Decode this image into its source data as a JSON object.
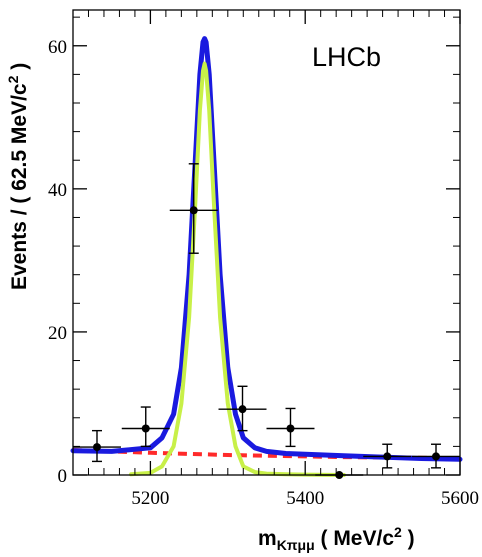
{
  "chart_data": {
    "type": "line",
    "title": "",
    "experiment_label": "LHCb",
    "xlabel_main": "m",
    "xlabel_sub": "Kπμμ",
    "xlabel_unit_pre": " ( MeV/c",
    "xlabel_unit_sup": "2",
    "xlabel_unit_post": " )",
    "ylabel_pre": "Events / ( 62.5 MeV/c",
    "ylabel_sup": "2",
    "ylabel_post": " )",
    "xlim": [
      5100,
      5600
    ],
    "ylim": [
      0,
      65
    ],
    "x_ticks": [
      5200,
      5400,
      5600
    ],
    "x_tick_labels": [
      "5200",
      "5400",
      "5600"
    ],
    "y_ticks": [
      0,
      20,
      40,
      60
    ],
    "y_tick_labels": [
      "0",
      "20",
      "40",
      "60"
    ],
    "grid": false,
    "data_points": [
      {
        "x": 5131,
        "y": 3.9,
        "xerr": 31,
        "yerr_low": 2.0,
        "yerr_high": 2.3
      },
      {
        "x": 5194,
        "y": 6.5,
        "xerr": 31,
        "yerr_low": 2.5,
        "yerr_high": 3.0
      },
      {
        "x": 5256,
        "y": 37.0,
        "xerr": 31,
        "yerr_low": 6.0,
        "yerr_high": 6.5
      },
      {
        "x": 5319,
        "y": 9.2,
        "xerr": 31,
        "yerr_low": 3.0,
        "yerr_high": 3.2
      },
      {
        "x": 5381,
        "y": 6.5,
        "xerr": 31,
        "yerr_low": 2.5,
        "yerr_high": 2.8
      },
      {
        "x": 5444,
        "y": 0.0,
        "xerr": 31,
        "yerr_low": 0.0,
        "yerr_high": 0.0
      },
      {
        "x": 5506,
        "y": 2.6,
        "xerr": 31,
        "yerr_low": 1.6,
        "yerr_high": 1.7
      },
      {
        "x": 5569,
        "y": 2.6,
        "xerr": 31,
        "yerr_low": 1.6,
        "yerr_high": 1.7
      }
    ],
    "series": [
      {
        "role": "total_fit",
        "color": "#1a1adf",
        "style": "solid",
        "x": [
          5100,
          5150,
          5200,
          5215,
          5230,
          5240,
          5250,
          5258,
          5264,
          5268,
          5270,
          5272,
          5276,
          5282,
          5290,
          5300,
          5310,
          5320,
          5335,
          5350,
          5375,
          5400,
          5450,
          5500,
          5550,
          5600
        ],
        "y": [
          3.4,
          3.3,
          3.8,
          5.2,
          8.5,
          15,
          28,
          44,
          56,
          60.5,
          61,
          60.5,
          56,
          44,
          28,
          15,
          8.5,
          5.2,
          3.8,
          3.3,
          3.0,
          2.9,
          2.7,
          2.5,
          2.3,
          2.2
        ]
      },
      {
        "role": "signal",
        "color": "#c8f048",
        "style": "solid",
        "x": [
          5175,
          5200,
          5215,
          5230,
          5240,
          5250,
          5258,
          5264,
          5268,
          5270,
          5272,
          5276,
          5282,
          5290,
          5300,
          5310,
          5320,
          5335,
          5350,
          5375,
          5400,
          5450
        ],
        "y": [
          0.1,
          0.3,
          1.2,
          4,
          10,
          22,
          38,
          51,
          56.5,
          57.5,
          56.5,
          51,
          38,
          22,
          10,
          4,
          1.2,
          0.4,
          0.2,
          0.1,
          0.05,
          0.0
        ]
      },
      {
        "role": "background",
        "color": "#ff2a2a",
        "style": "dashed",
        "x": [
          5100,
          5150,
          5200,
          5250,
          5300,
          5350,
          5400,
          5450,
          5500,
          5550,
          5600
        ],
        "y": [
          3.5,
          3.3,
          3.1,
          2.95,
          2.8,
          2.7,
          2.6,
          2.5,
          2.45,
          2.4,
          2.35
        ]
      }
    ]
  }
}
